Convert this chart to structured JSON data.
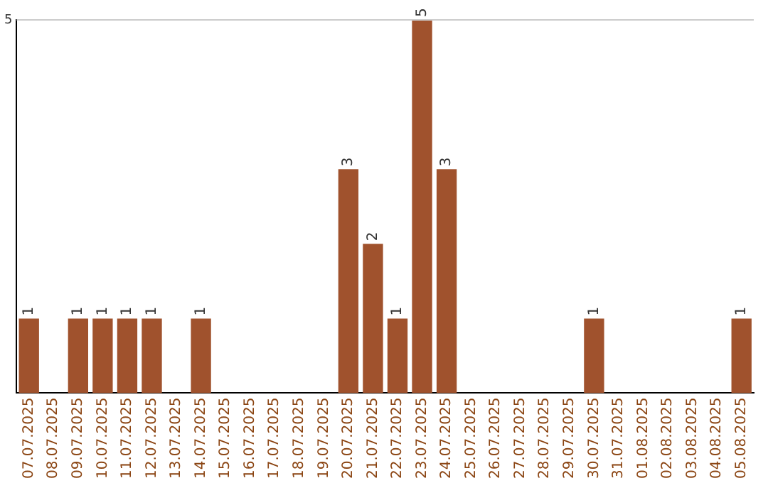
{
  "chart_data": {
    "type": "bar",
    "categories": [
      "07.07.2025",
      "08.07.2025",
      "09.07.2025",
      "10.07.2025",
      "11.07.2025",
      "12.07.2025",
      "13.07.2025",
      "14.07.2025",
      "15.07.2025",
      "16.07.2025",
      "17.07.2025",
      "18.07.2025",
      "19.07.2025",
      "20.07.2025",
      "21.07.2025",
      "22.07.2025",
      "23.07.2025",
      "24.07.2025",
      "25.07.2025",
      "26.07.2025",
      "27.07.2025",
      "28.07.2025",
      "29.07.2025",
      "30.07.2025",
      "31.07.2025",
      "01.08.2025",
      "02.08.2025",
      "03.08.2025",
      "04.08.2025",
      "05.08.2025"
    ],
    "values": [
      1,
      0,
      1,
      1,
      1,
      1,
      0,
      1,
      0,
      0,
      0,
      0,
      0,
      3,
      2,
      1,
      5,
      3,
      0,
      0,
      0,
      0,
      0,
      1,
      0,
      0,
      0,
      0,
      0,
      1
    ],
    "value_labels": [
      "1",
      null,
      "1",
      "1",
      "1",
      "1",
      null,
      "1",
      null,
      null,
      null,
      null,
      null,
      "3",
      "2",
      "1",
      "5",
      "3",
      null,
      null,
      null,
      null,
      null,
      "1",
      null,
      null,
      null,
      null,
      null,
      "1"
    ],
    "color": "#a0522d",
    "ylim": [
      0,
      5
    ],
    "yticks": [
      5
    ],
    "ref_lines": [
      {
        "axis": "y",
        "value": 5,
        "color": "#cccccc"
      }
    ],
    "legend": false
  }
}
